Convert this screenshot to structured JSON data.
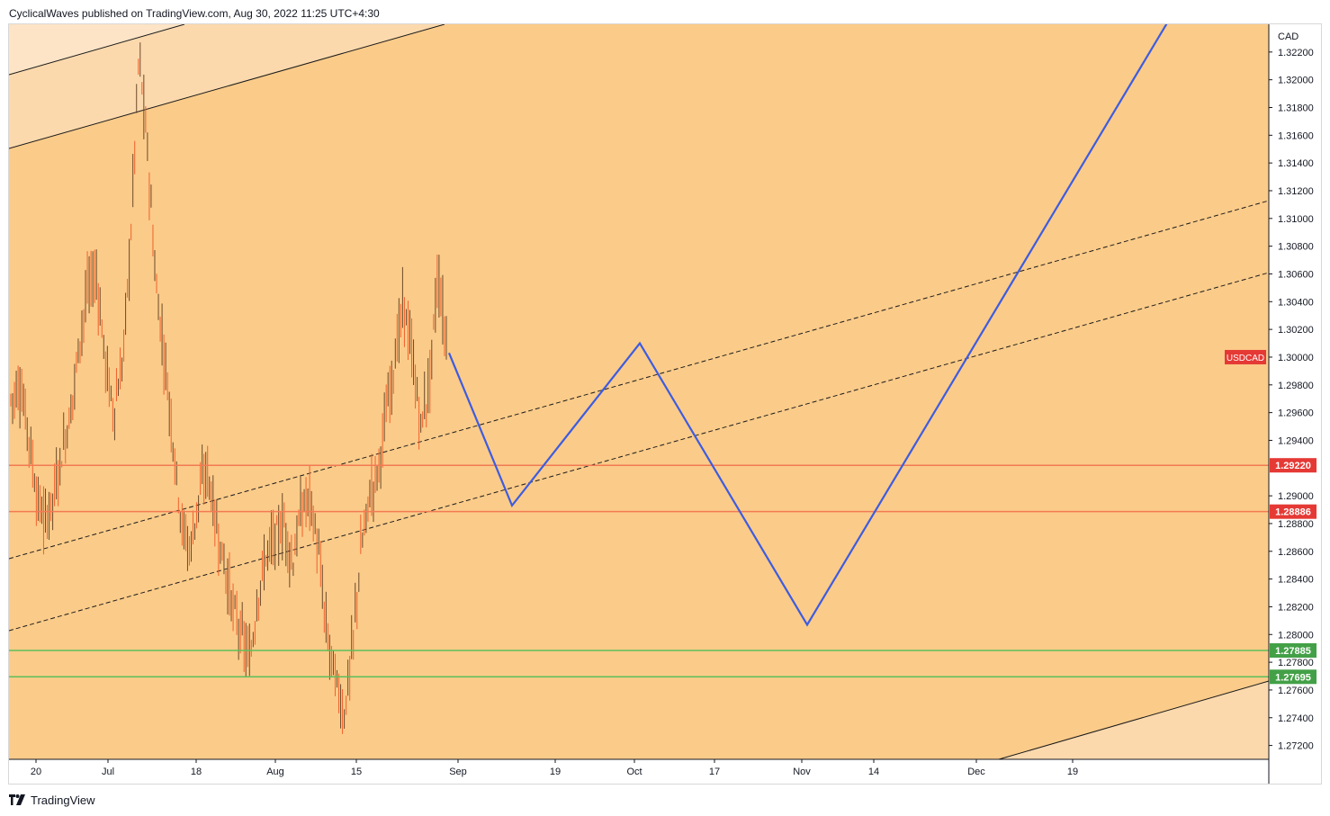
{
  "header": {
    "attribution": "CyclicalWaves published on TradingView.com, Aug 30, 2022 11:25 UTC+4:30"
  },
  "footer": {
    "brand": "TradingView"
  },
  "colors": {
    "background": "#fbcb89",
    "channel_fill": "#fcd9ad",
    "projection": "#3d5ce0",
    "resistance": "#f27a54",
    "support": "#5cbf5a",
    "candle": "#f0612d",
    "symbol_tag": "#e53935",
    "support_tag": "#43a047"
  },
  "chart_data": {
    "type": "candlestick",
    "symbol": "USDCAD",
    "currency": "CAD",
    "price_axis": {
      "range": [
        1.271,
        1.324
      ],
      "ticks": [
        "1.32200",
        "1.32000",
        "1.31800",
        "1.31600",
        "1.31400",
        "1.31200",
        "1.31000",
        "1.30800",
        "1.30600",
        "1.30400",
        "1.30200",
        "1.30000",
        "1.29800",
        "1.29600",
        "1.29400",
        "1.29000",
        "1.28800",
        "1.28600",
        "1.28400",
        "1.28200",
        "1.28000",
        "1.27800",
        "1.27600",
        "1.27400",
        "1.27200"
      ]
    },
    "time_axis": {
      "labels": [
        "20",
        "Jul",
        "18",
        "Aug",
        "15",
        "Sep",
        "19",
        "Oct",
        "17",
        "Nov",
        "14",
        "Dec",
        "19"
      ]
    },
    "horizontal_levels": [
      {
        "label": "1.29220",
        "price": 1.2922,
        "kind": "resistance"
      },
      {
        "label": "1.28886",
        "price": 1.28886,
        "kind": "resistance"
      },
      {
        "label": "1.27885",
        "price": 1.27885,
        "kind": "support"
      },
      {
        "label": "1.27695",
        "price": 1.27695,
        "kind": "support"
      }
    ],
    "last_price_tag": {
      "label": "USDCAD",
      "price": 1.3
    },
    "price_path": {
      "start": [
        1.297,
        1.298,
        1.295,
        1.29,
        1.288,
        1.29,
        1.293,
        1.296,
        1.301,
        1.305,
        1.306,
        1.3,
        1.296,
        1.299,
        1.308,
        1.322,
        1.315,
        1.305,
        1.3,
        1.294,
        1.288,
        1.286,
        1.29,
        1.292,
        1.288,
        1.285,
        1.282,
        1.28,
        1.278,
        1.283,
        1.286,
        1.287,
        1.288,
        1.285,
        1.289,
        1.29,
        1.286,
        1.28,
        1.277,
        1.274,
        1.279,
        1.286,
        1.29,
        1.292,
        1.296,
        1.3,
        1.304,
        1.3,
        1.295,
        1.298,
        1.306,
        1.301
      ]
    },
    "projection": {
      "points": [
        {
          "date": "Aug 30",
          "price": 1.3003
        },
        {
          "date": "Sep 11",
          "price": 1.2893
        },
        {
          "date": "Oct 1",
          "price": 1.301
        },
        {
          "date": "Nov 1",
          "price": 1.2807
        },
        {
          "date": "Dec 31",
          "price": 1.3242
        }
      ]
    }
  }
}
